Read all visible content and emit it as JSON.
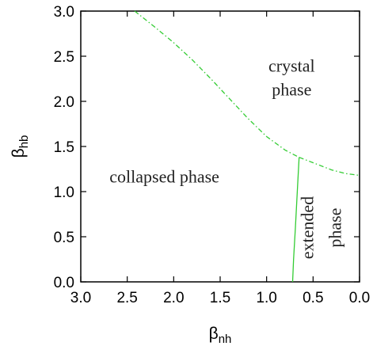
{
  "chart_data": {
    "type": "line",
    "title": "",
    "xlabel": {
      "main": "β",
      "sub": "nh"
    },
    "ylabel": {
      "main": "β",
      "sub": "hb"
    },
    "xlim": [
      3.0,
      0.0
    ],
    "ylim": [
      0.0,
      3.0
    ],
    "x_reversed": true,
    "x_ticks": [
      "3.0",
      "2.5",
      "2.0",
      "1.5",
      "1.0",
      "0.5",
      "0.0"
    ],
    "y_ticks": [
      "0.0",
      "0.5",
      "1.0",
      "1.5",
      "2.0",
      "2.5",
      "3.0"
    ],
    "grid": false,
    "legend": "none",
    "series": [
      {
        "style": "dash-dot",
        "color": "#33cc33",
        "x": [
          2.42,
          2.2,
          2.0,
          1.8,
          1.6,
          1.4,
          1.2,
          1.0,
          0.8,
          0.65
        ],
        "y": [
          3.0,
          2.82,
          2.65,
          2.46,
          2.25,
          2.03,
          1.81,
          1.61,
          1.46,
          1.38
        ]
      },
      {
        "style": "dash-dot",
        "color": "#33cc33",
        "x": [
          0.65,
          0.5,
          0.3,
          0.15,
          0.0
        ],
        "y": [
          1.38,
          1.32,
          1.24,
          1.2,
          1.18
        ]
      },
      {
        "style": "solid",
        "color": "#33cc33",
        "x": [
          0.65,
          0.67,
          0.69,
          0.71,
          0.72
        ],
        "y": [
          1.38,
          1.0,
          0.6,
          0.25,
          0.0
        ]
      }
    ],
    "annotations": [
      {
        "lines": [
          "crystal",
          "phase"
        ],
        "x": 0.73,
        "y": 2.33,
        "rotation": 0
      },
      {
        "lines": [
          "collapsed phase"
        ],
        "x": 2.1,
        "y": 1.1,
        "rotation": 0
      },
      {
        "lines": [
          "extended"
        ],
        "x": 0.5,
        "y": 0.6,
        "rotation": -90
      },
      {
        "lines": [
          "phase"
        ],
        "x": 0.2,
        "y": 0.6,
        "rotation": -90
      }
    ]
  }
}
